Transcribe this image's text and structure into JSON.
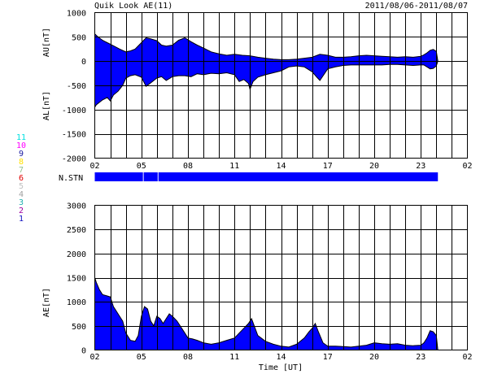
{
  "header": {
    "title": "Quik Look AE(11)",
    "date_range": "2011/08/06-2011/08/07"
  },
  "colors": {
    "fill": "#0000ff",
    "outline": "#000000",
    "background": "#ffffff"
  },
  "station_count_labels": [
    {
      "text": "11",
      "color": "#00e0e0"
    },
    {
      "text": "10",
      "color": "#ff00ff"
    },
    {
      "text": "9",
      "color": "#1a1aa0"
    },
    {
      "text": "8",
      "color": "#ffe000"
    },
    {
      "text": "7",
      "color": "#90c090"
    },
    {
      "text": "6",
      "color": "#e00000"
    },
    {
      "text": "5",
      "color": "#c0c0c0"
    },
    {
      "text": "4",
      "color": "#a0a0a0"
    },
    {
      "text": "3",
      "color": "#20b0b0"
    },
    {
      "text": "2",
      "color": "#a000a0"
    },
    {
      "text": "1",
      "color": "#1010c0"
    }
  ],
  "nstn_label": "N.STN",
  "chart_data": [
    {
      "type": "area",
      "ylabel_top": "AU[nT]",
      "ylabel_bottom": "AL[nT]",
      "xlim_hours": [
        2,
        26
      ],
      "ylim": [
        -2000,
        1000
      ],
      "y_ticks": [
        "1000",
        "500",
        "0",
        "-500",
        "-1000",
        "-1500",
        "-2000"
      ],
      "y_tick_values": [
        1000,
        500,
        0,
        -500,
        -1000,
        -1500,
        -2000
      ],
      "x_ticks": [
        "02",
        "05",
        "08",
        "11",
        "14",
        "17",
        "20",
        "23",
        "02"
      ],
      "x_tick_hours": [
        2,
        5,
        8,
        11,
        14,
        17,
        20,
        23,
        26
      ],
      "series": [
        {
          "x": [
            2.0,
            2.2,
            2.5,
            2.8,
            3.0,
            3.3,
            3.6,
            4.0,
            4.3,
            4.6,
            5.0,
            5.3,
            5.6,
            6.0,
            6.3,
            6.6,
            7.0,
            7.4,
            7.8,
            8.2,
            8.6,
            9.0,
            9.5,
            10.0,
            10.5,
            11.0,
            11.5,
            12.0,
            12.5,
            13.0,
            13.5,
            14.0,
            14.5,
            15.0,
            15.5,
            16.0,
            16.5,
            17.0,
            17.5,
            18.0,
            18.5,
            19.0,
            19.5,
            20.0,
            20.5,
            21.0,
            21.5,
            22.0,
            22.5,
            23.0,
            23.2,
            23.4,
            23.6,
            23.8,
            24.0,
            24.1
          ],
          "values": [
            560,
            500,
            430,
            380,
            350,
            300,
            250,
            190,
            210,
            250,
            380,
            480,
            460,
            420,
            330,
            310,
            330,
            430,
            480,
            400,
            330,
            270,
            190,
            150,
            120,
            140,
            120,
            110,
            80,
            60,
            40,
            30,
            30,
            40,
            60,
            80,
            140,
            120,
            80,
            80,
            90,
            110,
            120,
            110,
            100,
            90,
            80,
            90,
            80,
            100,
            130,
            170,
            220,
            240,
            200,
            0
          ]
        },
        {
          "x": [
            2.0,
            2.1,
            2.3,
            2.5,
            2.8,
            3.0,
            3.2,
            3.5,
            3.8,
            4.0,
            4.3,
            4.6,
            5.0,
            5.3,
            5.6,
            6.0,
            6.3,
            6.6,
            7.0,
            7.4,
            7.8,
            8.2,
            8.6,
            9.0,
            9.5,
            10.0,
            10.5,
            11.0,
            11.3,
            11.6,
            11.9,
            12.0,
            12.2,
            12.5,
            13.0,
            13.5,
            14.0,
            14.5,
            15.0,
            15.5,
            16.0,
            16.3,
            16.5,
            17.0,
            17.5,
            18.0,
            18.5,
            19.0,
            19.5,
            20.0,
            20.5,
            21.0,
            21.5,
            22.0,
            22.5,
            23.0,
            23.2,
            23.4,
            23.6,
            23.8,
            24.0,
            24.1
          ],
          "values": [
            -950,
            -900,
            -850,
            -800,
            -750,
            -820,
            -700,
            -620,
            -500,
            -350,
            -300,
            -280,
            -330,
            -520,
            -450,
            -350,
            -320,
            -400,
            -320,
            -300,
            -300,
            -320,
            -260,
            -280,
            -250,
            -260,
            -240,
            -280,
            -420,
            -380,
            -460,
            -580,
            -420,
            -330,
            -280,
            -240,
            -200,
            -120,
            -100,
            -120,
            -220,
            -330,
            -400,
            -160,
            -120,
            -90,
            -80,
            -80,
            -80,
            -80,
            -80,
            -70,
            -70,
            -80,
            -90,
            -80,
            -80,
            -120,
            -160,
            -150,
            -100,
            0
          ]
        }
      ]
    },
    {
      "type": "bar",
      "ylabel": "N.STN",
      "xlim_hours": [
        2,
        26
      ],
      "segments": [
        {
          "x0": 2.0,
          "x1": 5.1
        },
        {
          "x0": 5.15,
          "x1": 6.05
        },
        {
          "x0": 6.1,
          "x1": 24.1
        }
      ]
    },
    {
      "type": "area",
      "ylabel": "AE[nT]",
      "xlabel": "Time [UT]",
      "xlim_hours": [
        2,
        26
      ],
      "ylim": [
        0,
        3000
      ],
      "y_ticks": [
        "3000",
        "2500",
        "2000",
        "1500",
        "1000",
        "500",
        "0"
      ],
      "y_tick_values": [
        3000,
        2500,
        2000,
        1500,
        1000,
        500,
        0
      ],
      "x_ticks": [
        "02",
        "05",
        "08",
        "11",
        "14",
        "17",
        "20",
        "23",
        "02"
      ],
      "x_tick_hours": [
        2,
        5,
        8,
        11,
        14,
        17,
        20,
        23,
        26
      ],
      "series": [
        {
          "x": [
            2.0,
            2.1,
            2.3,
            2.5,
            2.8,
            3.0,
            3.2,
            3.4,
            3.6,
            3.8,
            4.0,
            4.3,
            4.6,
            4.8,
            5.0,
            5.2,
            5.4,
            5.6,
            5.8,
            6.0,
            6.2,
            6.4,
            6.6,
            6.8,
            7.0,
            7.3,
            7.6,
            7.8,
            8.0,
            8.3,
            8.6,
            9.0,
            9.5,
            10.0,
            10.5,
            11.0,
            11.3,
            11.6,
            11.9,
            12.1,
            12.5,
            13.0,
            13.5,
            14.0,
            14.5,
            15.0,
            15.5,
            15.8,
            16.0,
            16.2,
            16.4,
            16.7,
            17.0,
            17.5,
            18.0,
            18.5,
            19.0,
            19.5,
            20.0,
            20.5,
            21.0,
            21.5,
            22.0,
            22.5,
            23.0,
            23.2,
            23.4,
            23.6,
            23.8,
            24.0,
            24.1
          ],
          "values": [
            1500,
            1400,
            1250,
            1150,
            1120,
            1100,
            900,
            800,
            700,
            600,
            350,
            200,
            180,
            300,
            700,
            900,
            850,
            600,
            500,
            700,
            650,
            550,
            650,
            750,
            700,
            600,
            450,
            350,
            250,
            230,
            200,
            150,
            120,
            150,
            200,
            250,
            350,
            450,
            550,
            650,
            300,
            180,
            120,
            80,
            60,
            120,
            250,
            380,
            450,
            550,
            380,
            150,
            80,
            80,
            70,
            60,
            80,
            100,
            150,
            130,
            120,
            130,
            100,
            90,
            100,
            150,
            250,
            400,
            380,
            300,
            0
          ]
        }
      ]
    }
  ]
}
